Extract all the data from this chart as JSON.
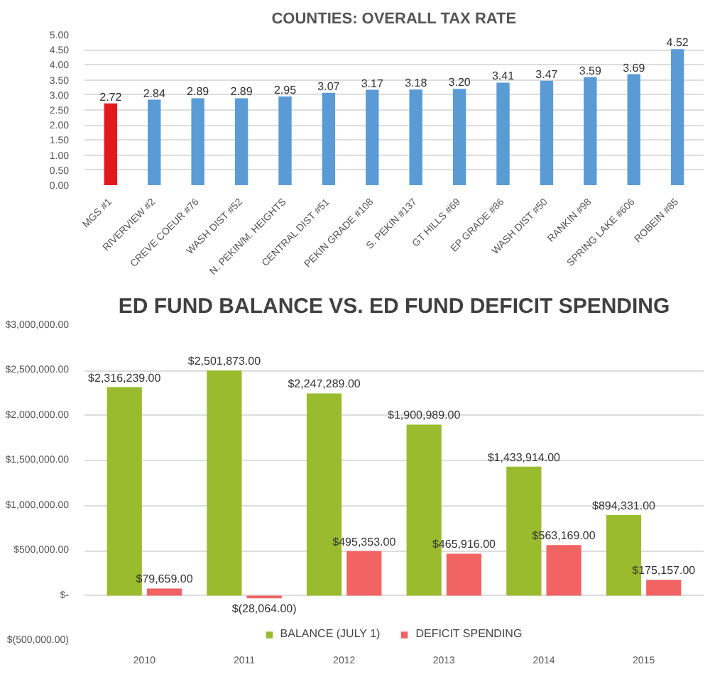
{
  "chart_data": [
    {
      "type": "bar",
      "title": "COUNTIES: OVERALL TAX RATE",
      "categories": [
        "MGS #1",
        "RIVERVIEW #2",
        "CREVE COEUR #76",
        "WASH DIST #52",
        "N. PEKIN/M. HEIGHTS",
        "CENTRAL DIST #51",
        "PEKIN GRADE #108",
        "S. PEKIN #137",
        "GT HILLS #69",
        "EP GRADE #86",
        "WASH DIST #50",
        "RANKIN #98",
        "SPRING LAKE #606",
        "ROBEIN #85"
      ],
      "values": [
        2.72,
        2.84,
        2.89,
        2.89,
        2.95,
        3.07,
        3.17,
        3.18,
        3.2,
        3.41,
        3.47,
        3.59,
        3.69,
        4.52
      ],
      "value_labels": [
        "2.72",
        "2.84",
        "2.89",
        "2.89",
        "2.95",
        "3.07",
        "3.17",
        "3.18",
        "3.20",
        "3.41",
        "3.47",
        "3.59",
        "3.69",
        "4.52"
      ],
      "colors": [
        "#e31a1c",
        "#5b9bd5",
        "#5b9bd5",
        "#5b9bd5",
        "#5b9bd5",
        "#5b9bd5",
        "#5b9bd5",
        "#5b9bd5",
        "#5b9bd5",
        "#5b9bd5",
        "#5b9bd5",
        "#5b9bd5",
        "#5b9bd5",
        "#5b9bd5"
      ],
      "ylim": [
        0,
        5
      ],
      "yticks": [
        {
          "value": 0,
          "label": "0.00"
        },
        {
          "value": 0.5,
          "label": "0.50"
        },
        {
          "value": 1,
          "label": "1.00"
        },
        {
          "value": 1.5,
          "label": "1.50"
        },
        {
          "value": 2,
          "label": "2.00"
        },
        {
          "value": 2.5,
          "label": "2.50"
        },
        {
          "value": 3,
          "label": "3.00"
        },
        {
          "value": 3.5,
          "label": "3.50"
        },
        {
          "value": 4,
          "label": "4.00"
        },
        {
          "value": 4.5,
          "label": "4.50"
        },
        {
          "value": 5,
          "label": "5.00"
        }
      ],
      "grid": "y",
      "legend": false
    },
    {
      "type": "bar",
      "title": "ED FUND BALANCE VS. ED FUND DEFICIT SPENDING",
      "categories": [
        "2010",
        "2011",
        "2012",
        "2013",
        "2014",
        "2015"
      ],
      "series": [
        {
          "name": "BALANCE (JULY 1)",
          "color": "#9bbb2f",
          "values": [
            2316239,
            2501873,
            2247289,
            1900989,
            1433914,
            894331
          ],
          "value_labels": [
            "$2,316,239.00",
            "$2,501,873.00",
            "$2,247,289.00",
            "$1,900,989.00",
            "$1,433,914.00",
            "$894,331.00"
          ]
        },
        {
          "name": "DEFICIT SPENDING",
          "color": "#f26363",
          "values": [
            79659,
            -28064,
            495353,
            465916,
            563169,
            175157
          ],
          "value_labels": [
            "$79,659.00",
            "$(28,064.00)",
            "$495,353.00",
            "$465,916.00",
            "$563,169.00",
            "$175,157.00"
          ]
        }
      ],
      "ylim": [
        -500000,
        3000000
      ],
      "yticks": [
        {
          "value": -500000,
          "label": "$(500,000.00)"
        },
        {
          "value": 0,
          "label": "$-"
        },
        {
          "value": 500000,
          "label": "$500,000.00"
        },
        {
          "value": 1000000,
          "label": "$1,000,000.00"
        },
        {
          "value": 1500000,
          "label": "$1,500,000.00"
        },
        {
          "value": 2000000,
          "label": "$2,000,000.00"
        },
        {
          "value": 2500000,
          "label": "$2,500,000.00"
        },
        {
          "value": 3000000,
          "label": "$3,000,000.00"
        }
      ],
      "grid": "y",
      "legend": "bottom"
    }
  ]
}
